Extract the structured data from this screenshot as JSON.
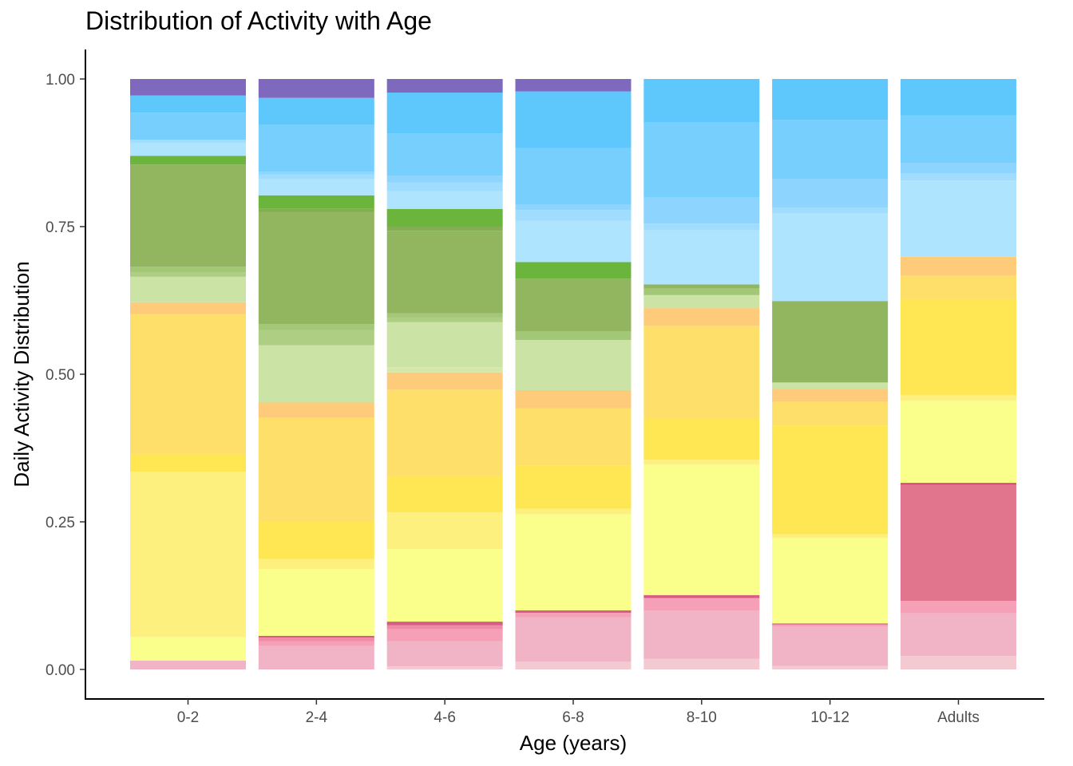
{
  "chart_data": {
    "type": "bar",
    "stacked": true,
    "title": "Distribution of Activity with Age",
    "xlabel": "Age (years)",
    "ylabel": "Daily Activity Distribution",
    "ylim": [
      0,
      1
    ],
    "y_ticks": [
      "0.00",
      "0.25",
      "0.50",
      "0.75",
      "1.00"
    ],
    "y_tick_values": [
      0,
      0.25,
      0.5,
      0.75,
      1.0
    ],
    "grid": false,
    "legend": "none",
    "categories": [
      "0-2",
      "2-4",
      "4-6",
      "6-8",
      "8-10",
      "10-12",
      "Adults"
    ],
    "stacks": [
      {
        "category": "0-2",
        "segments": [
          {
            "y0": 0.0,
            "y1": 0.015,
            "color": "#F1B3C6"
          },
          {
            "y0": 0.015,
            "y1": 0.055,
            "color": "#FAFE8A"
          },
          {
            "y0": 0.055,
            "y1": 0.335,
            "color": "#FEF07E"
          },
          {
            "y0": 0.335,
            "y1": 0.365,
            "color": "#FEE752"
          },
          {
            "y0": 0.365,
            "y1": 0.602,
            "color": "#FDDF69"
          },
          {
            "y0": 0.602,
            "y1": 0.622,
            "color": "#FDCB79"
          },
          {
            "y0": 0.622,
            "y1": 0.665,
            "color": "#CBE4A5"
          },
          {
            "y0": 0.665,
            "y1": 0.672,
            "color": "#AECF83"
          },
          {
            "y0": 0.672,
            "y1": 0.682,
            "color": "#A2C877"
          },
          {
            "y0": 0.682,
            "y1": 0.855,
            "color": "#92B55F"
          },
          {
            "y0": 0.855,
            "y1": 0.87,
            "color": "#6BB53C"
          },
          {
            "y0": 0.87,
            "y1": 0.892,
            "color": "#AEE4FE"
          },
          {
            "y0": 0.892,
            "y1": 0.897,
            "color": "#9FDCFE"
          },
          {
            "y0": 0.897,
            "y1": 0.943,
            "color": "#77CFFE"
          },
          {
            "y0": 0.943,
            "y1": 0.972,
            "color": "#5EC8FC"
          },
          {
            "y0": 0.972,
            "y1": 1.0,
            "color": "#7F69BE"
          }
        ]
      },
      {
        "category": "2-4",
        "segments": [
          {
            "y0": 0.0,
            "y1": 0.04,
            "color": "#F1B3C6"
          },
          {
            "y0": 0.04,
            "y1": 0.048,
            "color": "#F6A0B7"
          },
          {
            "y0": 0.048,
            "y1": 0.054,
            "color": "#F08BA6"
          },
          {
            "y0": 0.054,
            "y1": 0.057,
            "color": "#D45E85"
          },
          {
            "y0": 0.057,
            "y1": 0.17,
            "color": "#FAFE8A"
          },
          {
            "y0": 0.17,
            "y1": 0.187,
            "color": "#FEF07E"
          },
          {
            "y0": 0.187,
            "y1": 0.25,
            "color": "#FEE752"
          },
          {
            "y0": 0.25,
            "y1": 0.426,
            "color": "#FDDF69"
          },
          {
            "y0": 0.426,
            "y1": 0.452,
            "color": "#FDCB79"
          },
          {
            "y0": 0.452,
            "y1": 0.549,
            "color": "#CBE4A5"
          },
          {
            "y0": 0.549,
            "y1": 0.575,
            "color": "#AECF83"
          },
          {
            "y0": 0.575,
            "y1": 0.585,
            "color": "#A2C877"
          },
          {
            "y0": 0.585,
            "y1": 0.775,
            "color": "#92B55F"
          },
          {
            "y0": 0.775,
            "y1": 0.78,
            "color": "#83AF52"
          },
          {
            "y0": 0.78,
            "y1": 0.803,
            "color": "#6BB53C"
          },
          {
            "y0": 0.803,
            "y1": 0.83,
            "color": "#AEE4FE"
          },
          {
            "y0": 0.83,
            "y1": 0.838,
            "color": "#9FDCFE"
          },
          {
            "y0": 0.838,
            "y1": 0.843,
            "color": "#8DD5FE"
          },
          {
            "y0": 0.843,
            "y1": 0.922,
            "color": "#77CFFE"
          },
          {
            "y0": 0.922,
            "y1": 0.968,
            "color": "#5EC8FC"
          },
          {
            "y0": 0.968,
            "y1": 1.0,
            "color": "#7F69BE"
          }
        ]
      },
      {
        "category": "4-6",
        "segments": [
          {
            "y0": 0.0,
            "y1": 0.005,
            "color": "#F4CAD2"
          },
          {
            "y0": 0.005,
            "y1": 0.048,
            "color": "#F1B3C6"
          },
          {
            "y0": 0.048,
            "y1": 0.068,
            "color": "#F6A0B7"
          },
          {
            "y0": 0.068,
            "y1": 0.075,
            "color": "#F08BA6"
          },
          {
            "y0": 0.075,
            "y1": 0.081,
            "color": "#D45E85"
          },
          {
            "y0": 0.081,
            "y1": 0.204,
            "color": "#FAFE8A"
          },
          {
            "y0": 0.204,
            "y1": 0.266,
            "color": "#FEF07E"
          },
          {
            "y0": 0.266,
            "y1": 0.327,
            "color": "#FEE752"
          },
          {
            "y0": 0.327,
            "y1": 0.474,
            "color": "#FDDF69"
          },
          {
            "y0": 0.474,
            "y1": 0.503,
            "color": "#FDCB79"
          },
          {
            "y0": 0.503,
            "y1": 0.512,
            "color": "#D6E8A8"
          },
          {
            "y0": 0.512,
            "y1": 0.588,
            "color": "#CBE4A5"
          },
          {
            "y0": 0.588,
            "y1": 0.596,
            "color": "#AECF83"
          },
          {
            "y0": 0.596,
            "y1": 0.603,
            "color": "#A2C877"
          },
          {
            "y0": 0.603,
            "y1": 0.743,
            "color": "#92B55F"
          },
          {
            "y0": 0.743,
            "y1": 0.75,
            "color": "#83AF52"
          },
          {
            "y0": 0.75,
            "y1": 0.78,
            "color": "#6BB53C"
          },
          {
            "y0": 0.78,
            "y1": 0.81,
            "color": "#AEE4FE"
          },
          {
            "y0": 0.81,
            "y1": 0.825,
            "color": "#9FDCFE"
          },
          {
            "y0": 0.825,
            "y1": 0.836,
            "color": "#8DD5FE"
          },
          {
            "y0": 0.836,
            "y1": 0.908,
            "color": "#77CFFE"
          },
          {
            "y0": 0.908,
            "y1": 0.977,
            "color": "#5EC8FC"
          },
          {
            "y0": 0.977,
            "y1": 1.0,
            "color": "#7F69BE"
          }
        ]
      },
      {
        "category": "6-8",
        "segments": [
          {
            "y0": 0.0,
            "y1": 0.013,
            "color": "#F4CAD2"
          },
          {
            "y0": 0.013,
            "y1": 0.088,
            "color": "#F1B3C6"
          },
          {
            "y0": 0.088,
            "y1": 0.096,
            "color": "#F6A0B7"
          },
          {
            "y0": 0.096,
            "y1": 0.1,
            "color": "#D45E85"
          },
          {
            "y0": 0.1,
            "y1": 0.263,
            "color": "#FAFE8A"
          },
          {
            "y0": 0.263,
            "y1": 0.272,
            "color": "#FEF07E"
          },
          {
            "y0": 0.272,
            "y1": 0.345,
            "color": "#FEE752"
          },
          {
            "y0": 0.345,
            "y1": 0.442,
            "color": "#FDDF69"
          },
          {
            "y0": 0.442,
            "y1": 0.473,
            "color": "#FDCB79"
          },
          {
            "y0": 0.473,
            "y1": 0.558,
            "color": "#CBE4A5"
          },
          {
            "y0": 0.558,
            "y1": 0.573,
            "color": "#A2C877"
          },
          {
            "y0": 0.573,
            "y1": 0.662,
            "color": "#92B55F"
          },
          {
            "y0": 0.662,
            "y1": 0.69,
            "color": "#6BB53C"
          },
          {
            "y0": 0.69,
            "y1": 0.76,
            "color": "#AEE4FE"
          },
          {
            "y0": 0.76,
            "y1": 0.778,
            "color": "#9FDCFE"
          },
          {
            "y0": 0.778,
            "y1": 0.787,
            "color": "#8DD5FE"
          },
          {
            "y0": 0.787,
            "y1": 0.883,
            "color": "#77CFFE"
          },
          {
            "y0": 0.883,
            "y1": 0.979,
            "color": "#5EC8FC"
          },
          {
            "y0": 0.979,
            "y1": 1.0,
            "color": "#7F69BE"
          }
        ]
      },
      {
        "category": "8-10",
        "segments": [
          {
            "y0": 0.0,
            "y1": 0.018,
            "color": "#F4CAD2"
          },
          {
            "y0": 0.018,
            "y1": 0.1,
            "color": "#F1B3C6"
          },
          {
            "y0": 0.1,
            "y1": 0.121,
            "color": "#F6A0B7"
          },
          {
            "y0": 0.121,
            "y1": 0.126,
            "color": "#D45E85"
          },
          {
            "y0": 0.126,
            "y1": 0.347,
            "color": "#FAFE8A"
          },
          {
            "y0": 0.347,
            "y1": 0.355,
            "color": "#FEF07E"
          },
          {
            "y0": 0.355,
            "y1": 0.425,
            "color": "#FEE752"
          },
          {
            "y0": 0.425,
            "y1": 0.582,
            "color": "#FDDF69"
          },
          {
            "y0": 0.582,
            "y1": 0.612,
            "color": "#FDCB79"
          },
          {
            "y0": 0.612,
            "y1": 0.634,
            "color": "#CBE4A5"
          },
          {
            "y0": 0.634,
            "y1": 0.645,
            "color": "#A2C877"
          },
          {
            "y0": 0.645,
            "y1": 0.652,
            "color": "#92B55F"
          },
          {
            "y0": 0.652,
            "y1": 0.744,
            "color": "#AEE4FE"
          },
          {
            "y0": 0.744,
            "y1": 0.755,
            "color": "#9FDCFE"
          },
          {
            "y0": 0.755,
            "y1": 0.8,
            "color": "#8DD5FE"
          },
          {
            "y0": 0.8,
            "y1": 0.926,
            "color": "#77CFFE"
          },
          {
            "y0": 0.926,
            "y1": 1.0,
            "color": "#5EC8FC"
          }
        ]
      },
      {
        "category": "10-12",
        "segments": [
          {
            "y0": 0.0,
            "y1": 0.006,
            "color": "#F4CAD2"
          },
          {
            "y0": 0.006,
            "y1": 0.073,
            "color": "#F1B3C6"
          },
          {
            "y0": 0.073,
            "y1": 0.076,
            "color": "#F6A0B7"
          },
          {
            "y0": 0.076,
            "y1": 0.078,
            "color": "#D45E85"
          },
          {
            "y0": 0.078,
            "y1": 0.223,
            "color": "#FAFE8A"
          },
          {
            "y0": 0.223,
            "y1": 0.229,
            "color": "#FEF07E"
          },
          {
            "y0": 0.229,
            "y1": 0.413,
            "color": "#FEE752"
          },
          {
            "y0": 0.413,
            "y1": 0.453,
            "color": "#FDDF69"
          },
          {
            "y0": 0.453,
            "y1": 0.475,
            "color": "#FDCB79"
          },
          {
            "y0": 0.475,
            "y1": 0.486,
            "color": "#CBE4A5"
          },
          {
            "y0": 0.486,
            "y1": 0.624,
            "color": "#92B55F"
          },
          {
            "y0": 0.624,
            "y1": 0.773,
            "color": "#AEE4FE"
          },
          {
            "y0": 0.773,
            "y1": 0.782,
            "color": "#9FDCFE"
          },
          {
            "y0": 0.782,
            "y1": 0.83,
            "color": "#8DD5FE"
          },
          {
            "y0": 0.83,
            "y1": 0.931,
            "color": "#77CFFE"
          },
          {
            "y0": 0.931,
            "y1": 1.0,
            "color": "#5EC8FC"
          }
        ]
      },
      {
        "category": "Adults",
        "segments": [
          {
            "y0": 0.0,
            "y1": 0.023,
            "color": "#F4CAD2"
          },
          {
            "y0": 0.023,
            "y1": 0.095,
            "color": "#F1B3C6"
          },
          {
            "y0": 0.095,
            "y1": 0.116,
            "color": "#F6A0B7"
          },
          {
            "y0": 0.116,
            "y1": 0.313,
            "color": "#E2758E"
          },
          {
            "y0": 0.313,
            "y1": 0.316,
            "color": "#C9456E"
          },
          {
            "y0": 0.316,
            "y1": 0.455,
            "color": "#FAFE8A"
          },
          {
            "y0": 0.455,
            "y1": 0.465,
            "color": "#FEF07E"
          },
          {
            "y0": 0.465,
            "y1": 0.627,
            "color": "#FEE752"
          },
          {
            "y0": 0.627,
            "y1": 0.667,
            "color": "#FDDF69"
          },
          {
            "y0": 0.667,
            "y1": 0.699,
            "color": "#FDCB79"
          },
          {
            "y0": 0.699,
            "y1": 0.828,
            "color": "#AEE4FE"
          },
          {
            "y0": 0.828,
            "y1": 0.84,
            "color": "#9FDCFE"
          },
          {
            "y0": 0.84,
            "y1": 0.858,
            "color": "#8DD5FE"
          },
          {
            "y0": 0.858,
            "y1": 0.938,
            "color": "#77CFFE"
          },
          {
            "y0": 0.938,
            "y1": 1.0,
            "color": "#5EC8FC"
          }
        ]
      }
    ]
  }
}
